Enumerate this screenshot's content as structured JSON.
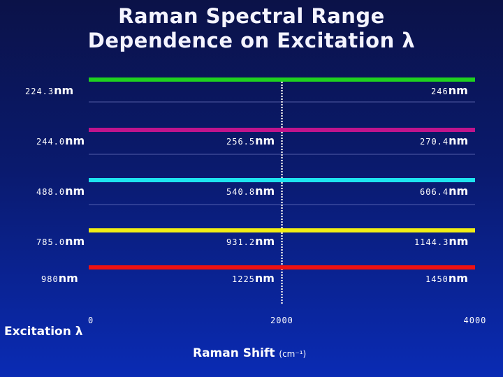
{
  "title": {
    "line1": "Raman Spectral Range",
    "line2": "Dependence on Excitation λ"
  },
  "x_axis": {
    "label": "Raman Shift",
    "unit": "(cm⁻¹)",
    "ticks": [
      "0",
      "2000",
      "4000"
    ]
  },
  "y_axis_label": "Excitation λ",
  "unit_suffix": "nm",
  "rows": [
    {
      "excitation": "224.3",
      "mid": "",
      "end": "246",
      "color": "#1fd21f"
    },
    {
      "excitation": "244.0",
      "mid": "256.5",
      "end": "270.4",
      "color": "#c0148c"
    },
    {
      "excitation": "488.0",
      "mid": "540.8",
      "end": "606.4",
      "color": "#1ee4ef"
    },
    {
      "excitation": "785.0",
      "mid": "931.2",
      "end": "1144.3",
      "color": "#f2ee14"
    },
    {
      "excitation": "980",
      "mid": "1225",
      "end": "1450",
      "color": "#ee1111"
    }
  ],
  "chart_data": {
    "type": "bar",
    "title": "Raman Spectral Range Dependence on Excitation λ",
    "xlabel": "Raman Shift (cm⁻¹)",
    "ylabel": "Excitation λ",
    "xlim": [
      0,
      4000
    ],
    "x_ticks": [
      0,
      2000,
      4000
    ],
    "categories": [
      "224.3nm",
      "244.0nm",
      "488.0nm",
      "785.0nm",
      "980nm"
    ],
    "bars": [
      {
        "excitation_nm": 224.3,
        "shift_start": 0,
        "shift_end": 4000,
        "wavelength_at_2000": null,
        "wavelength_at_4000": 246
      },
      {
        "excitation_nm": 244.0,
        "shift_start": 0,
        "shift_end": 4000,
        "wavelength_at_2000": 256.5,
        "wavelength_at_4000": 270.4
      },
      {
        "excitation_nm": 488.0,
        "shift_start": 0,
        "shift_end": 4000,
        "wavelength_at_2000": 540.8,
        "wavelength_at_4000": 606.4
      },
      {
        "excitation_nm": 785.0,
        "shift_start": 0,
        "shift_end": 4000,
        "wavelength_at_2000": 931.2,
        "wavelength_at_4000": 1144.3
      },
      {
        "excitation_nm": 980,
        "shift_start": 0,
        "shift_end": 4000,
        "wavelength_at_2000": 1225,
        "wavelength_at_4000": 1450
      }
    ],
    "reference_line_x": 2000,
    "grid": false
  }
}
